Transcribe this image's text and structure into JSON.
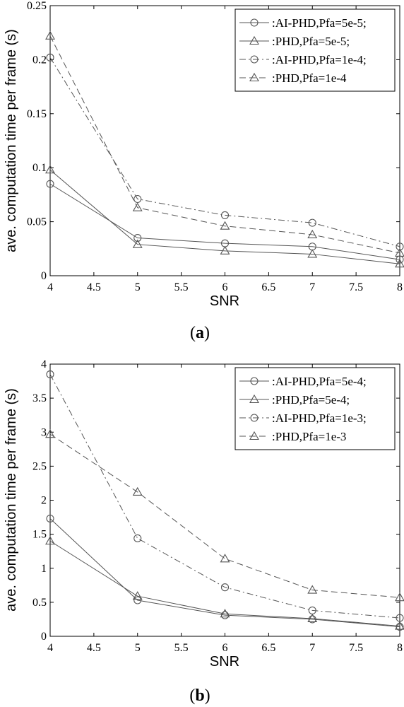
{
  "chart_data": [
    {
      "type": "line",
      "panel_label": "a",
      "xlabel": "SNR",
      "ylabel": "ave. computation time per frame (s)",
      "xlim": [
        4,
        8
      ],
      "ylim": [
        0,
        0.25
      ],
      "xticks": [
        "4",
        "4.5",
        "5",
        "5.5",
        "6",
        "6.5",
        "7",
        "7.5",
        "8"
      ],
      "yticks": [
        "0",
        "0.05",
        "0.1",
        "0.15",
        "0.2",
        "0.25"
      ],
      "grid": false,
      "legend_position": "top-right",
      "x": [
        4,
        5,
        6,
        7,
        8
      ],
      "series": [
        {
          "name": ":AI-PHD,Pfa=5e-5;",
          "marker": "circle",
          "dash": "solid",
          "values": [
            0.085,
            0.035,
            0.03,
            0.027,
            0.015
          ]
        },
        {
          "name": ":PHD,Pfa=5e-5;",
          "marker": "triangle",
          "dash": "solid",
          "values": [
            0.098,
            0.029,
            0.023,
            0.02,
            0.011
          ]
        },
        {
          "name": ":AI-PHD,Pfa=1e-4;",
          "marker": "circle",
          "dash": "dashdot",
          "values": [
            0.202,
            0.071,
            0.056,
            0.049,
            0.027
          ]
        },
        {
          "name": ":PHD,Pfa=1e-4",
          "marker": "triangle",
          "dash": "dashed",
          "values": [
            0.222,
            0.063,
            0.046,
            0.038,
            0.021
          ]
        }
      ]
    },
    {
      "type": "line",
      "panel_label": "b",
      "xlabel": "SNR",
      "ylabel": "ave. computation time per frame (s)",
      "xlim": [
        4,
        8
      ],
      "ylim": [
        0,
        4
      ],
      "xticks": [
        "4",
        "4.5",
        "5",
        "5.5",
        "6",
        "6.5",
        "7",
        "7.5",
        "8"
      ],
      "yticks": [
        "0",
        "0.5",
        "1",
        "1.5",
        "2",
        "2.5",
        "3",
        "3.5",
        "4"
      ],
      "grid": false,
      "legend_position": "top-right",
      "x": [
        4,
        5,
        6,
        7,
        8
      ],
      "series": [
        {
          "name": ":AI-PHD,Pfa=5e-4;",
          "marker": "circle",
          "dash": "solid",
          "values": [
            1.73,
            0.53,
            0.31,
            0.25,
            0.14
          ]
        },
        {
          "name": ":PHD,Pfa=5e-4;",
          "marker": "triangle",
          "dash": "solid",
          "values": [
            1.4,
            0.59,
            0.33,
            0.26,
            0.15
          ]
        },
        {
          "name": ":AI-PHD,Pfa=1e-3;",
          "marker": "circle",
          "dash": "dashdot",
          "values": [
            3.85,
            1.44,
            0.72,
            0.38,
            0.27
          ]
        },
        {
          "name": ":PHD,Pfa=1e-3",
          "marker": "triangle",
          "dash": "dashed",
          "values": [
            2.97,
            2.12,
            1.14,
            0.68,
            0.57
          ]
        }
      ]
    }
  ],
  "colors": {
    "line": "#555555",
    "axis": "#000000",
    "background": "#ffffff"
  }
}
